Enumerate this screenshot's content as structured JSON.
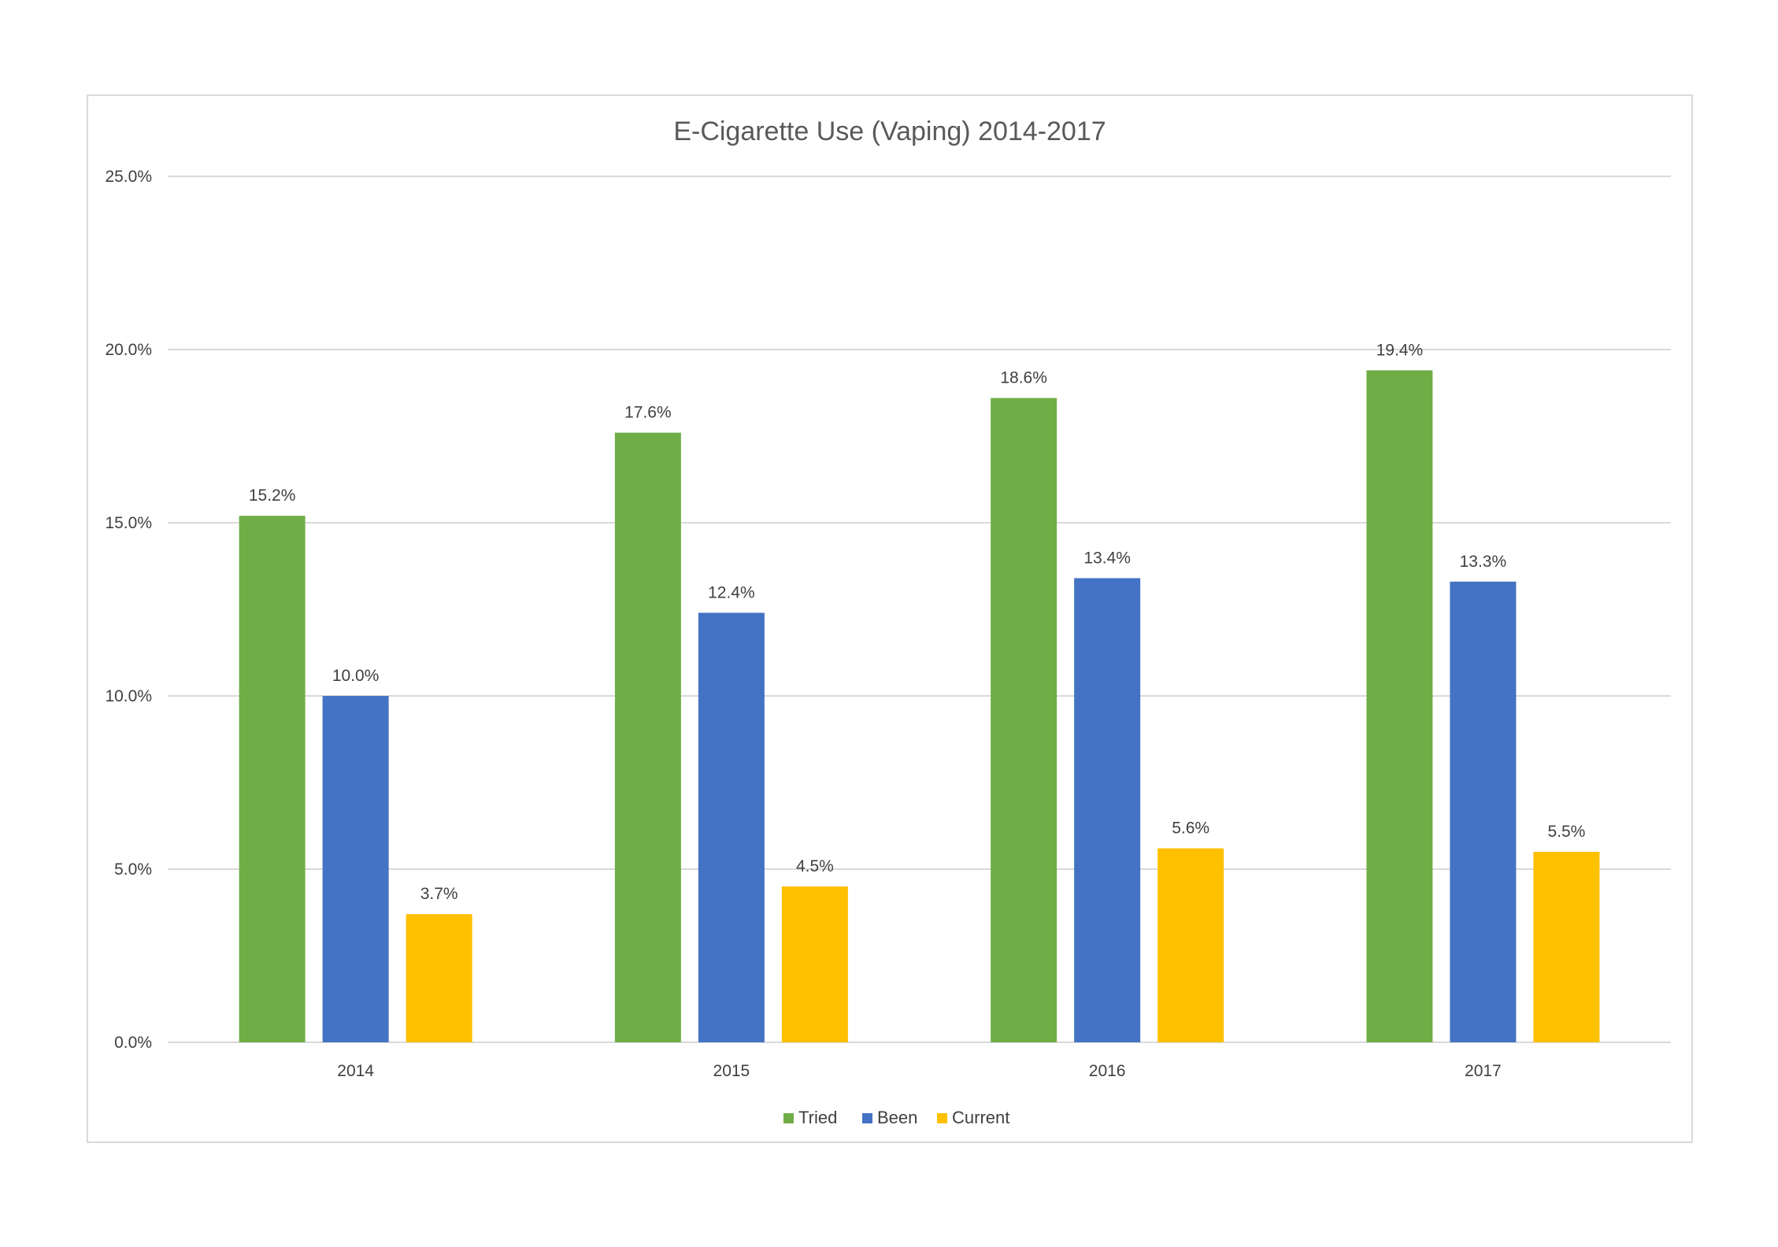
{
  "chart_data": {
    "type": "bar",
    "title": "E-Cigarette Use (Vaping) 2014-2017",
    "categories": [
      "2014",
      "2015",
      "2016",
      "2017"
    ],
    "series": [
      {
        "name": "Tried",
        "values": [
          15.2,
          17.6,
          18.6,
          19.4
        ],
        "color": "#70AD47"
      },
      {
        "name": "Been",
        "values": [
          10.0,
          12.4,
          13.4,
          13.3
        ],
        "color": "#4472C4"
      },
      {
        "name": "Current",
        "values": [
          3.7,
          4.5,
          5.6,
          5.5
        ],
        "color": "#FFC000"
      }
    ],
    "value_format": "percent_1dp",
    "ylim": [
      0,
      25
    ],
    "yticks": [
      0,
      5,
      10,
      15,
      20,
      25
    ],
    "ytick_labels": [
      "0.0%",
      "5.0%",
      "10.0%",
      "15.0%",
      "20.0%",
      "25.0%"
    ],
    "grid": true,
    "legend_position": "bottom",
    "data_labels": true
  }
}
